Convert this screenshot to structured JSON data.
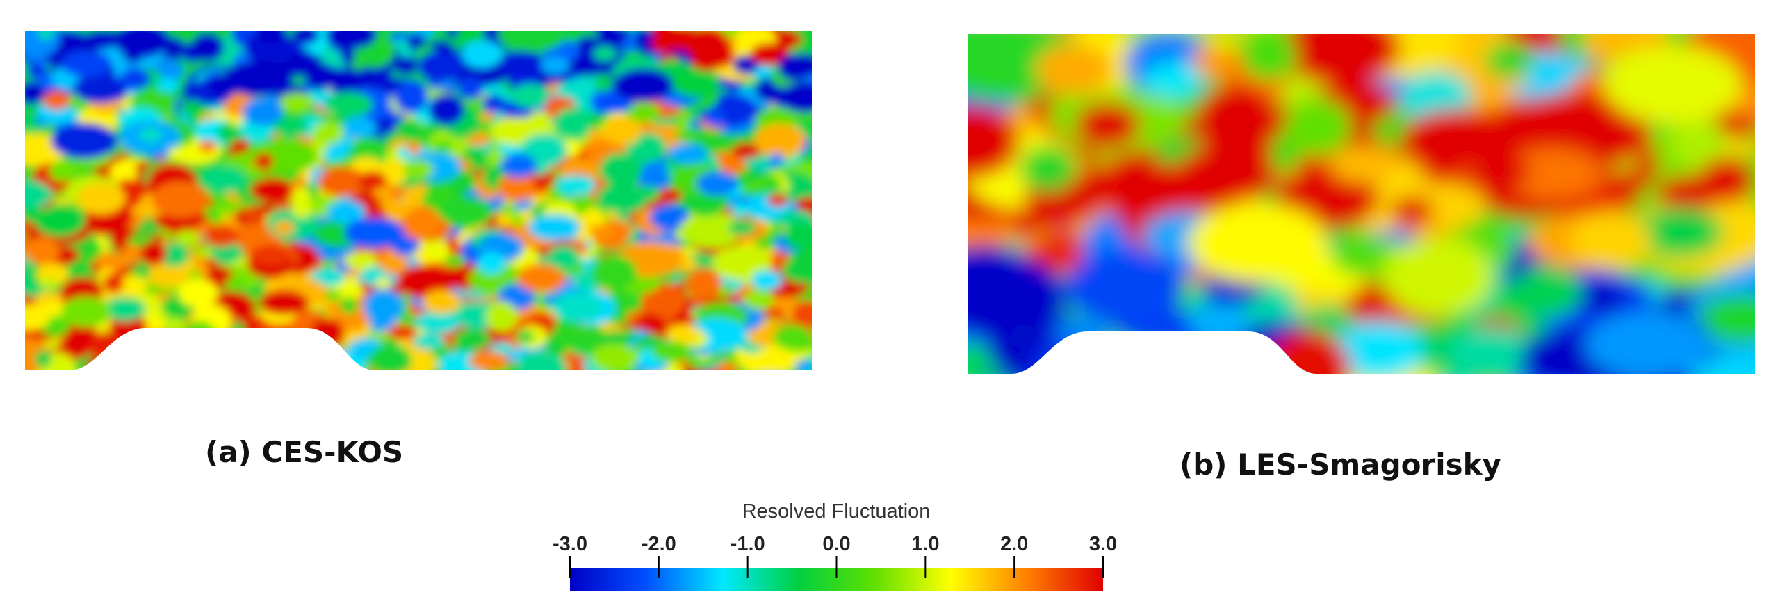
{
  "panels": [
    {
      "label": "(a) CES-KOS"
    },
    {
      "label": "(b) LES-Smagorisky"
    }
  ],
  "colorbar": {
    "title": "Resolved Fluctuation",
    "range": [
      -3,
      3
    ],
    "ticks": [
      {
        "value": -3,
        "label": "-3.0"
      },
      {
        "value": -2,
        "label": "-2.0"
      },
      {
        "value": -1,
        "label": "-1.0"
      },
      {
        "value": 0,
        "label": "0.0"
      },
      {
        "value": 1,
        "label": "1.0"
      },
      {
        "value": 2,
        "label": "2.0"
      },
      {
        "value": 3,
        "label": "3.0"
      }
    ],
    "colors": [
      "#0000c8",
      "#0050ff",
      "#00e8ff",
      "#00d040",
      "#60e000",
      "#ffff00",
      "#ff8000",
      "#e00000"
    ]
  }
}
